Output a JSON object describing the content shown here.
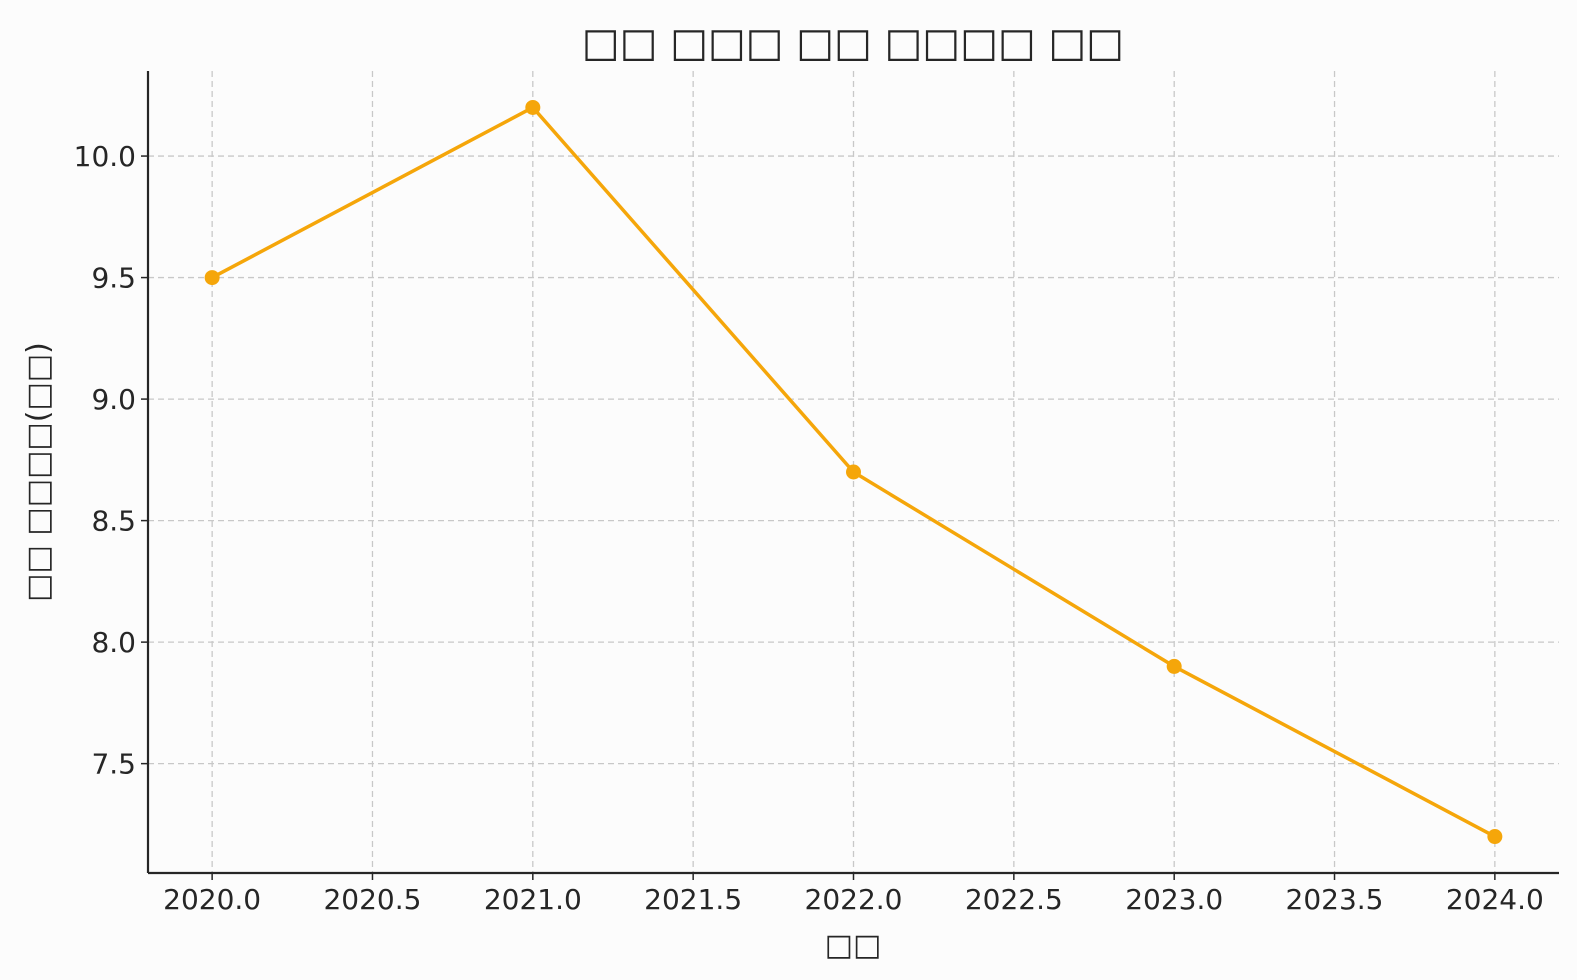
{
  "chart_data": {
    "type": "line",
    "title": "□□ □□□ □□ □□□□ □□",
    "xlabel": "□□",
    "ylabel": "□□ □□□□(□□)",
    "x": [
      2020,
      2021,
      2022,
      2023,
      2024
    ],
    "series": [
      {
        "values": [
          9.5,
          10.2,
          8.7,
          7.9,
          7.2
        ],
        "color": "#f5a60a"
      }
    ],
    "xticks": [
      2020.0,
      2020.5,
      2021.0,
      2021.5,
      2022.0,
      2022.5,
      2023.0,
      2023.5,
      2024.0
    ],
    "xtick_labels": [
      "2020.0",
      "2020.5",
      "2021.0",
      "2021.5",
      "2022.0",
      "2022.5",
      "2023.0",
      "2023.5",
      "2024.0"
    ],
    "yticks": [
      7.5,
      8.0,
      8.5,
      9.0,
      9.5,
      10.0
    ],
    "ytick_labels": [
      "7.5",
      "8.0",
      "8.5",
      "9.0",
      "9.5",
      "10.0"
    ],
    "xlim": [
      2019.8,
      2024.2
    ],
    "ylim": [
      7.05,
      10.35
    ],
    "grid": true,
    "grid_style": "dashed",
    "marker": "circle"
  }
}
